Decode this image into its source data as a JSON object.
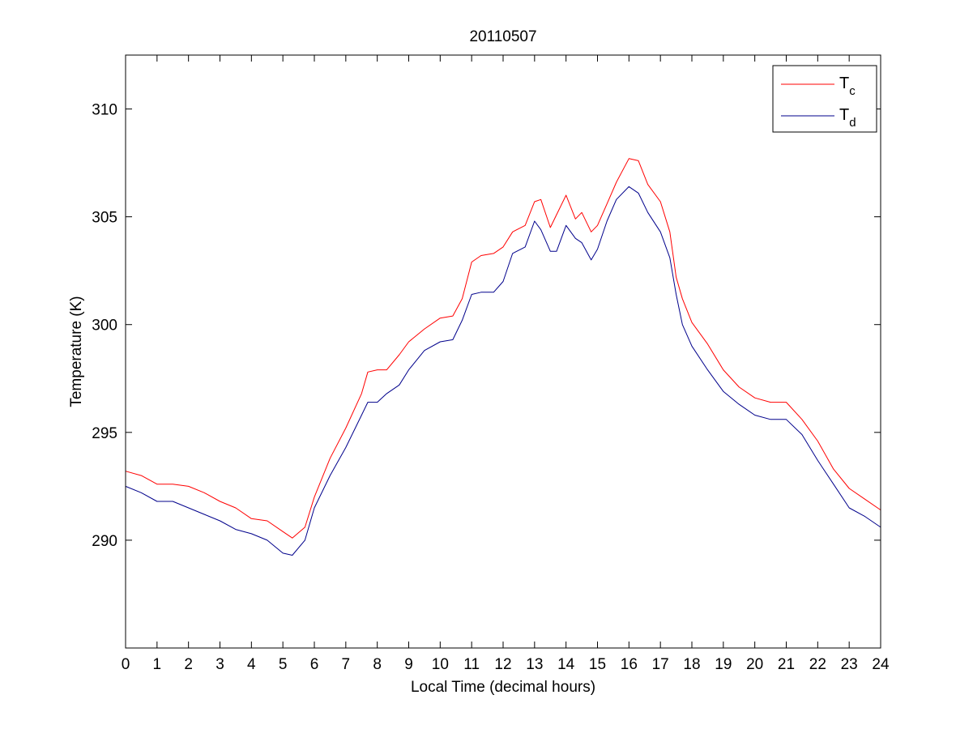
{
  "chart_data": {
    "type": "line",
    "title": "20110507",
    "xlabel": "Local Time (decimal hours)",
    "ylabel": "Temperature (K)",
    "xlim": [
      0,
      24
    ],
    "ylim": [
      285,
      312.5
    ],
    "xticks": [
      0,
      1,
      2,
      3,
      4,
      5,
      6,
      7,
      8,
      9,
      10,
      11,
      12,
      13,
      14,
      15,
      16,
      17,
      18,
      19,
      20,
      21,
      22,
      23,
      24
    ],
    "yticks": [
      290,
      295,
      300,
      305,
      310
    ],
    "grid": false,
    "legend_position": "top-right",
    "series": [
      {
        "name": "T",
        "subscript": "c",
        "color": "#ff0000",
        "x": [
          0,
          0.5,
          1,
          1.5,
          2,
          2.5,
          3,
          3.5,
          4,
          4.5,
          5,
          5.3,
          5.7,
          6,
          6.5,
          7,
          7.5,
          7.7,
          8,
          8.3,
          8.7,
          9,
          9.5,
          10,
          10.4,
          10.7,
          11,
          11.3,
          11.7,
          12,
          12.3,
          12.7,
          13,
          13.2,
          13.5,
          13.7,
          14,
          14.3,
          14.5,
          14.8,
          15,
          15.3,
          15.6,
          16,
          16.3,
          16.6,
          17,
          17.3,
          17.5,
          17.7,
          18,
          18.5,
          19,
          19.5,
          20,
          20.5,
          21,
          21.5,
          22,
          22.5,
          23,
          23.5,
          24
        ],
        "y": [
          293.2,
          293.0,
          292.6,
          292.6,
          292.5,
          292.2,
          291.8,
          291.5,
          291.0,
          290.9,
          290.4,
          290.1,
          290.6,
          292.0,
          293.8,
          295.2,
          296.8,
          297.8,
          297.9,
          297.9,
          298.6,
          299.2,
          299.8,
          300.3,
          300.4,
          301.2,
          302.9,
          303.2,
          303.3,
          303.6,
          304.3,
          304.6,
          305.7,
          305.8,
          304.5,
          305.1,
          306.0,
          304.9,
          305.2,
          304.3,
          304.6,
          305.6,
          306.6,
          307.7,
          307.6,
          306.5,
          305.7,
          304.3,
          302.2,
          301.2,
          300.1,
          299.1,
          297.9,
          297.1,
          296.6,
          296.4,
          296.4,
          295.6,
          294.6,
          293.3,
          292.4,
          291.9,
          291.4
        ]
      },
      {
        "name": "T",
        "subscript": "d",
        "color": "#00008b",
        "x": [
          0,
          0.5,
          1,
          1.5,
          2,
          2.5,
          3,
          3.5,
          4,
          4.5,
          5,
          5.3,
          5.7,
          6,
          6.5,
          7,
          7.5,
          7.7,
          8,
          8.3,
          8.7,
          9,
          9.5,
          10,
          10.4,
          10.7,
          11,
          11.3,
          11.7,
          12,
          12.3,
          12.7,
          13,
          13.2,
          13.5,
          13.7,
          14,
          14.3,
          14.5,
          14.8,
          15,
          15.3,
          15.6,
          16,
          16.3,
          16.6,
          17,
          17.3,
          17.5,
          17.7,
          18,
          18.5,
          19,
          19.5,
          20,
          20.5,
          21,
          21.5,
          22,
          22.5,
          23,
          23.5,
          24
        ],
        "y": [
          292.5,
          292.2,
          291.8,
          291.8,
          291.5,
          291.2,
          290.9,
          290.5,
          290.3,
          290.0,
          289.4,
          289.3,
          290.0,
          291.5,
          293.0,
          294.3,
          295.8,
          296.4,
          296.4,
          296.8,
          297.2,
          297.9,
          298.8,
          299.2,
          299.3,
          300.2,
          301.4,
          301.5,
          301.5,
          302.0,
          303.3,
          303.6,
          304.8,
          304.4,
          303.4,
          303.4,
          304.6,
          304.0,
          303.8,
          303.0,
          303.5,
          304.8,
          305.8,
          306.4,
          306.1,
          305.2,
          304.3,
          303.1,
          301.4,
          300.0,
          299.0,
          297.9,
          296.9,
          296.3,
          295.8,
          295.6,
          295.6,
          294.9,
          293.7,
          292.6,
          291.5,
          291.1,
          290.6
        ]
      }
    ]
  },
  "colors": {
    "axes": "#000000",
    "background": "#ffffff"
  }
}
